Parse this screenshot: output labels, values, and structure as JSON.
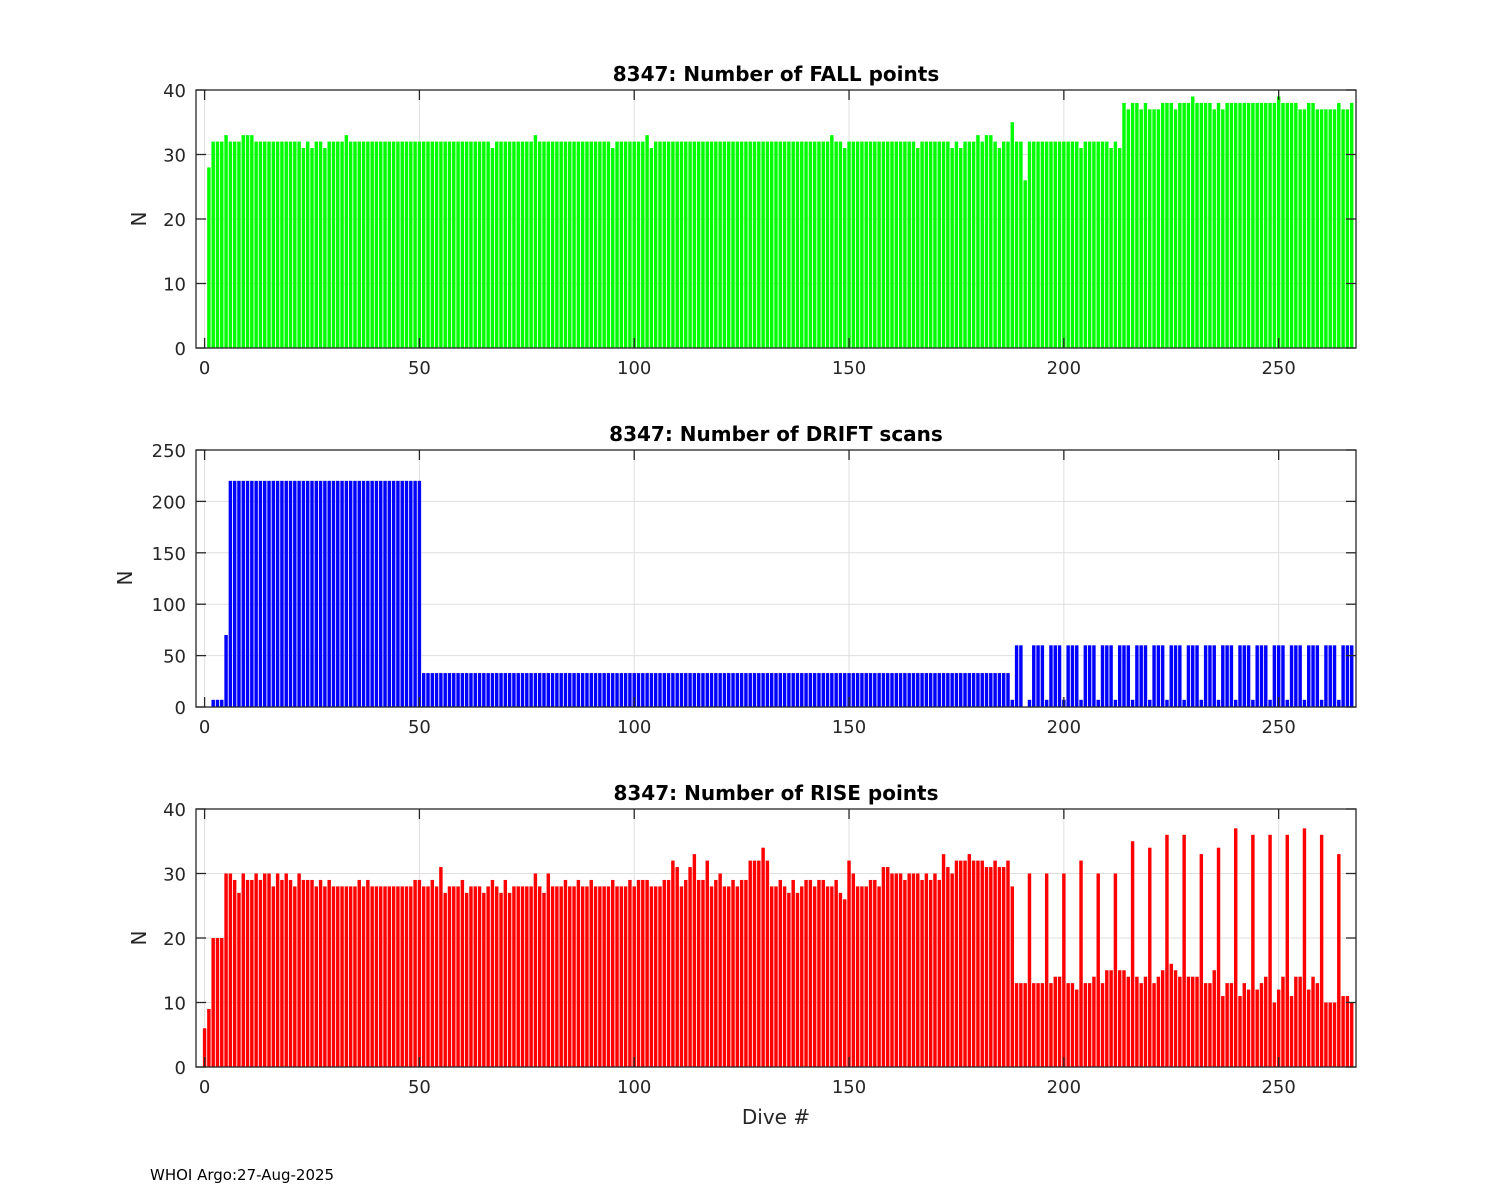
{
  "footer": "WHOI Argo:27-Aug-2025",
  "chart_data": [
    {
      "type": "bar",
      "title": "8347: Number of FALL points",
      "xlabel": "",
      "ylabel": "N",
      "xlim": [
        -2,
        268
      ],
      "ylim": [
        0,
        40
      ],
      "xticks": [
        0,
        50,
        100,
        150,
        200,
        250
      ],
      "yticks": [
        0,
        10,
        20,
        30,
        40
      ],
      "grid": true,
      "color": "#00ff00",
      "x_start": 1,
      "values": [
        28,
        32,
        32,
        32,
        33,
        32,
        32,
        32,
        33,
        33,
        33,
        32,
        32,
        32,
        32,
        32,
        32,
        32,
        32,
        32,
        32,
        32,
        31,
        32,
        31,
        32,
        32,
        31,
        32,
        32,
        32,
        32,
        33,
        32,
        32,
        32,
        32,
        32,
        32,
        32,
        32,
        32,
        32,
        32,
        32,
        32,
        32,
        32,
        32,
        32,
        32,
        32,
        32,
        32,
        32,
        32,
        32,
        32,
        32,
        32,
        32,
        32,
        32,
        32,
        32,
        32,
        31,
        32,
        32,
        32,
        32,
        32,
        32,
        32,
        32,
        32,
        33,
        32,
        32,
        32,
        32,
        32,
        32,
        32,
        32,
        32,
        32,
        32,
        32,
        32,
        32,
        32,
        32,
        32,
        31,
        32,
        32,
        32,
        32,
        32,
        32,
        32,
        33,
        31,
        32,
        32,
        32,
        32,
        32,
        32,
        32,
        32,
        32,
        32,
        32,
        32,
        32,
        32,
        32,
        32,
        32,
        32,
        32,
        32,
        32,
        32,
        32,
        32,
        32,
        32,
        32,
        32,
        32,
        32,
        32,
        32,
        32,
        32,
        32,
        32,
        32,
        32,
        32,
        32,
        32,
        33,
        32,
        32,
        31,
        32,
        32,
        32,
        32,
        32,
        32,
        32,
        32,
        32,
        32,
        32,
        32,
        32,
        32,
        32,
        32,
        31,
        32,
        32,
        32,
        32,
        32,
        32,
        32,
        31,
        32,
        31,
        32,
        32,
        32,
        33,
        32,
        33,
        33,
        32,
        31,
        32,
        32,
        35,
        32,
        32,
        26,
        32,
        32,
        32,
        32,
        32,
        32,
        32,
        32,
        32,
        32,
        32,
        32,
        31,
        32,
        32,
        32,
        32,
        32,
        32,
        31,
        32,
        31,
        38,
        37,
        38,
        38,
        37,
        38,
        37,
        37,
        37,
        38,
        38,
        38,
        37,
        38,
        38,
        38,
        39,
        38,
        38,
        38,
        38,
        37,
        38,
        37,
        38,
        38,
        38,
        38,
        38,
        38,
        38,
        38,
        38,
        38,
        38,
        38,
        39,
        38,
        38,
        38,
        38,
        37,
        37,
        38,
        38,
        37,
        37,
        37,
        37,
        37,
        38,
        37,
        37,
        38
      ]
    },
    {
      "type": "bar",
      "title": "8347: Number of DRIFT scans",
      "xlabel": "",
      "ylabel": "N",
      "xlim": [
        -2,
        268
      ],
      "ylim": [
        0,
        250
      ],
      "xticks": [
        0,
        50,
        100,
        150,
        200,
        250
      ],
      "yticks": [
        0,
        50,
        100,
        150,
        200,
        250
      ],
      "grid": true,
      "color": "#0000ff",
      "x_start": 1,
      "values": [
        0,
        7,
        7,
        7,
        70,
        220,
        220,
        220,
        220,
        220,
        220,
        220,
        220,
        220,
        220,
        220,
        220,
        220,
        220,
        220,
        220,
        220,
        220,
        220,
        220,
        220,
        220,
        220,
        220,
        220,
        220,
        220,
        220,
        220,
        220,
        220,
        220,
        220,
        220,
        220,
        220,
        220,
        220,
        220,
        220,
        220,
        220,
        220,
        220,
        220,
        33,
        33,
        33,
        33,
        33,
        33,
        33,
        33,
        33,
        33,
        33,
        33,
        33,
        33,
        33,
        33,
        33,
        33,
        33,
        33,
        33,
        33,
        33,
        33,
        33,
        33,
        33,
        33,
        33,
        33,
        33,
        33,
        33,
        33,
        33,
        33,
        33,
        33,
        33,
        33,
        33,
        33,
        33,
        33,
        33,
        33,
        33,
        33,
        33,
        33,
        33,
        33,
        33,
        33,
        33,
        33,
        33,
        33,
        33,
        33,
        33,
        33,
        33,
        33,
        33,
        33,
        33,
        33,
        33,
        33,
        33,
        33,
        33,
        33,
        33,
        33,
        33,
        33,
        33,
        33,
        33,
        33,
        33,
        33,
        33,
        33,
        33,
        33,
        33,
        33,
        33,
        33,
        33,
        33,
        33,
        33,
        33,
        33,
        33,
        33,
        33,
        33,
        33,
        33,
        33,
        33,
        33,
        33,
        33,
        33,
        33,
        33,
        33,
        33,
        33,
        33,
        33,
        33,
        33,
        33,
        33,
        33,
        33,
        33,
        33,
        33,
        33,
        33,
        33,
        33,
        33,
        33,
        33,
        33,
        33,
        33,
        33,
        7,
        60,
        60,
        0,
        7,
        60,
        60,
        60,
        7,
        60,
        60,
        60,
        7,
        60,
        60,
        60,
        7,
        60,
        60,
        60,
        7,
        60,
        60,
        60,
        7,
        60,
        60,
        60,
        7,
        60,
        60,
        60,
        7,
        60,
        60,
        60,
        7,
        60,
        60,
        60,
        7,
        60,
        60,
        60,
        7,
        60,
        60,
        60,
        7,
        60,
        60,
        60,
        7,
        60,
        60,
        60,
        7,
        60,
        60,
        60,
        7,
        60,
        60,
        60,
        7,
        60,
        60,
        60,
        7,
        60,
        60,
        60,
        7,
        60,
        60,
        60,
        7,
        60,
        60,
        60
      ]
    },
    {
      "type": "bar",
      "title": "8347: Number of RISE points",
      "xlabel": "Dive #",
      "ylabel": "N",
      "xlim": [
        -2,
        268
      ],
      "ylim": [
        0,
        40
      ],
      "xticks": [
        0,
        50,
        100,
        150,
        200,
        250
      ],
      "yticks": [
        0,
        10,
        20,
        30,
        40
      ],
      "grid": true,
      "color": "#ff0000",
      "x_start": 0,
      "values": [
        6,
        9,
        20,
        20,
        20,
        30,
        30,
        29,
        27,
        30,
        29,
        29,
        30,
        29,
        30,
        30,
        28,
        30,
        29,
        30,
        29,
        28,
        30,
        29,
        29,
        29,
        28,
        29,
        28,
        29,
        28,
        28,
        28,
        28,
        28,
        28,
        29,
        28,
        29,
        28,
        28,
        28,
        28,
        28,
        28,
        28,
        28,
        28,
        28,
        29,
        29,
        28,
        28,
        29,
        28,
        31,
        27,
        28,
        28,
        28,
        29,
        27,
        28,
        28,
        28,
        27,
        28,
        29,
        28,
        27,
        29,
        27,
        28,
        28,
        28,
        28,
        28,
        30,
        28,
        27,
        30,
        28,
        28,
        28,
        29,
        28,
        28,
        29,
        28,
        28,
        29,
        28,
        28,
        28,
        28,
        29,
        28,
        28,
        28,
        29,
        28,
        29,
        29,
        29,
        28,
        28,
        28,
        29,
        29,
        32,
        31,
        28,
        29,
        31,
        33,
        29,
        29,
        32,
        28,
        29,
        30,
        28,
        28,
        29,
        28,
        29,
        29,
        32,
        32,
        32,
        34,
        32,
        28,
        28,
        29,
        28,
        27,
        29,
        27,
        28,
        29,
        29,
        28,
        29,
        29,
        28,
        28,
        29,
        27,
        26,
        32,
        30,
        28,
        28,
        28,
        29,
        29,
        28,
        31,
        31,
        30,
        30,
        30,
        29,
        30,
        30,
        30,
        29,
        30,
        29,
        30,
        29,
        33,
        31,
        30,
        32,
        32,
        32,
        33,
        32,
        32,
        32,
        31,
        31,
        32,
        31,
        31,
        32,
        28,
        13,
        13,
        13,
        30,
        13,
        13,
        13,
        30,
        13,
        14,
        14,
        30,
        13,
        13,
        12,
        32,
        13,
        13,
        14,
        30,
        13,
        15,
        15,
        30,
        15,
        15,
        14,
        35,
        14,
        13,
        14,
        34,
        13,
        14,
        15,
        36,
        16,
        15,
        14,
        36,
        14,
        14,
        14,
        33,
        13,
        13,
        15,
        34,
        11,
        13,
        13,
        37,
        11,
        13,
        12,
        36,
        12,
        13,
        14,
        36,
        10,
        12,
        14,
        36,
        11,
        14,
        14,
        37,
        12,
        14,
        13,
        36,
        10,
        10,
        10,
        33,
        11,
        11,
        10
      ]
    }
  ]
}
